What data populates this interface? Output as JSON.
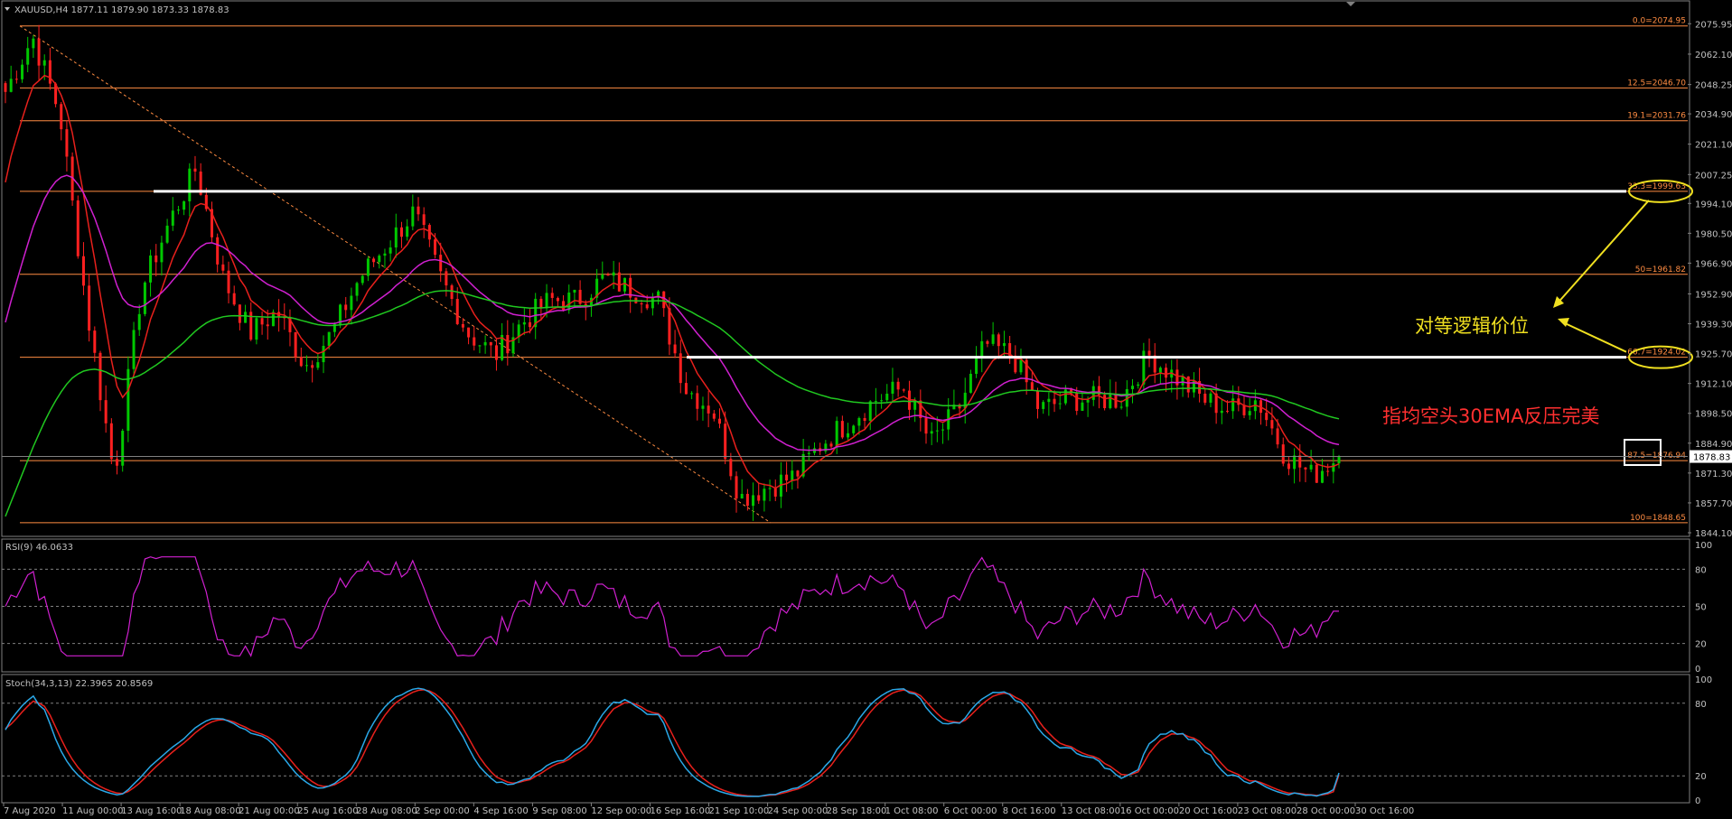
{
  "header": {
    "symbol_line": "XAUUSD,H4  1877.11 1879.90 1873.33 1878.83"
  },
  "price_axis": {
    "ticks": [
      "2075.95",
      "2062.10",
      "2048.25",
      "2034.90",
      "2021.10",
      "2007.25",
      "1994.10",
      "1980.50",
      "1966.90",
      "1952.90",
      "1939.30",
      "1925.70",
      "1912.10",
      "1898.50",
      "1884.90",
      "1871.30",
      "1857.70",
      "1844.10"
    ],
    "current_price": "1878.83"
  },
  "fib_levels": [
    {
      "label": "0.0=2074.95"
    },
    {
      "label": "12.5=2046.70"
    },
    {
      "label": "19.1=2031.76"
    },
    {
      "label": "33.3=1999.63"
    },
    {
      "label": "50=1961.82"
    },
    {
      "label": "66.7=1924.02"
    },
    {
      "label": "87.5=1876.94"
    },
    {
      "label": "100=1848.65"
    }
  ],
  "annotations": {
    "equal_logic": "对等逻辑价位",
    "ema_resist": "指均空头30EMA反压完美"
  },
  "rsi": {
    "title": "RSI(9) 46.0633",
    "ticks": [
      "100",
      "80",
      "50",
      "20",
      "0"
    ]
  },
  "stoch": {
    "title": "Stoch(34,3,13) 22.3965 20.8569",
    "ticks": [
      "100",
      "80",
      "20",
      "0"
    ]
  },
  "time_axis": {
    "labels": [
      "7 Aug 2020",
      "11 Aug 00:00",
      "13 Aug 16:00",
      "18 Aug 08:00",
      "21 Aug 00:00",
      "25 Aug 16:00",
      "28 Aug 08:00",
      "2 Sep 00:00",
      "4 Sep 16:00",
      "9 Sep 08:00",
      "12 Sep 00:00",
      "16 Sep 16:00",
      "21 Sep 10:00",
      "24 Sep 00:00",
      "28 Sep 18:00",
      "1 Oct 08:00",
      "6 Oct 00:00",
      "8 Oct 16:00",
      "13 Oct 08:00",
      "16 Oct 00:00",
      "20 Oct 16:00",
      "23 Oct 08:00",
      "28 Oct 00:00",
      "30 Oct 16:00"
    ]
  },
  "colors": {
    "bull": "#00c800",
    "bear": "#ff2020",
    "ema30": "#e8201c",
    "ma_mid": "#d020d0",
    "ma_long": "#20c820",
    "fib": "#ff8c42",
    "rsi": "#d020d0",
    "stoch_main": "#2aa8e8",
    "stoch_signal": "#e8201c",
    "annotation": "#f0e020",
    "annotation_red": "#ff3030"
  },
  "chart_data": [
    {
      "type": "candlestick",
      "title": "XAUUSD,H4",
      "ylim": [
        1844.1,
        2081.0
      ],
      "anchors": [
        {
          "t": "7 Aug 2020",
          "close": 2045
        },
        {
          "t": "8 Aug",
          "close": 2070
        },
        {
          "t": "10 Aug",
          "close": 2035
        },
        {
          "t": "11 Aug 00:00",
          "close": 1945
        },
        {
          "t": "12 Aug",
          "close": 1870
        },
        {
          "t": "13 Aug 16:00",
          "close": 1955
        },
        {
          "t": "17 Aug",
          "close": 1985
        },
        {
          "t": "18 Aug 08:00",
          "close": 2010
        },
        {
          "t": "19 Aug",
          "close": 1960
        },
        {
          "t": "21 Aug 00:00",
          "close": 1935
        },
        {
          "t": "24 Aug",
          "close": 1945
        },
        {
          "t": "25 Aug 16:00",
          "close": 1920
        },
        {
          "t": "27 Aug",
          "close": 1935
        },
        {
          "t": "28 Aug 08:00",
          "close": 1960
        },
        {
          "t": "1 Sep",
          "close": 1975
        },
        {
          "t": "2 Sep 00:00",
          "close": 1990
        },
        {
          "t": "3 Sep",
          "close": 1960
        },
        {
          "t": "4 Sep 16:00",
          "close": 1935
        },
        {
          "t": "8 Sep",
          "close": 1925
        },
        {
          "t": "9 Sep 08:00",
          "close": 1940
        },
        {
          "t": "10 Sep",
          "close": 1950
        },
        {
          "t": "12 Sep 00:00",
          "close": 1950
        },
        {
          "t": "14 Sep",
          "close": 1960
        },
        {
          "t": "16 Sep 16:00",
          "close": 1955
        },
        {
          "t": "18 Sep",
          "close": 1950
        },
        {
          "t": "21 Sep 10:00",
          "close": 1910
        },
        {
          "t": "22 Sep",
          "close": 1900
        },
        {
          "t": "24 Sep 00:00",
          "close": 1860
        },
        {
          "t": "25 Sep",
          "close": 1865
        },
        {
          "t": "28 Sep 18:00",
          "close": 1870
        },
        {
          "t": "29 Sep",
          "close": 1885
        },
        {
          "t": "1 Oct 08:00",
          "close": 1895
        },
        {
          "t": "2 Oct",
          "close": 1905
        },
        {
          "t": "6 Oct 00:00",
          "close": 1910
        },
        {
          "t": "7 Oct",
          "close": 1885
        },
        {
          "t": "8 Oct 16:00",
          "close": 1900
        },
        {
          "t": "9 Oct",
          "close": 1930
        },
        {
          "t": "12 Oct",
          "close": 1925
        },
        {
          "t": "13 Oct 08:00",
          "close": 1900
        },
        {
          "t": "15 Oct",
          "close": 1905
        },
        {
          "t": "16 Oct 00:00",
          "close": 1905
        },
        {
          "t": "19 Oct",
          "close": 1905
        },
        {
          "t": "20 Oct 16:00",
          "close": 1925
        },
        {
          "t": "21 Oct",
          "close": 1915
        },
        {
          "t": "23 Oct 08:00",
          "close": 1905
        },
        {
          "t": "26 Oct",
          "close": 1900
        },
        {
          "t": "27 Oct",
          "close": 1905
        },
        {
          "t": "28 Oct 00:00",
          "close": 1880
        },
        {
          "t": "29 Oct",
          "close": 1870
        },
        {
          "t": "30 Oct 16:00",
          "close": 1878.83
        }
      ]
    },
    {
      "type": "line",
      "title": "RSI(9)",
      "ylim": [
        0,
        100
      ],
      "value": 46.0633
    },
    {
      "type": "line",
      "title": "Stoch(34,3,13)",
      "ylim": [
        0,
        100
      ],
      "main": 22.3965,
      "signal": 20.8569
    }
  ]
}
